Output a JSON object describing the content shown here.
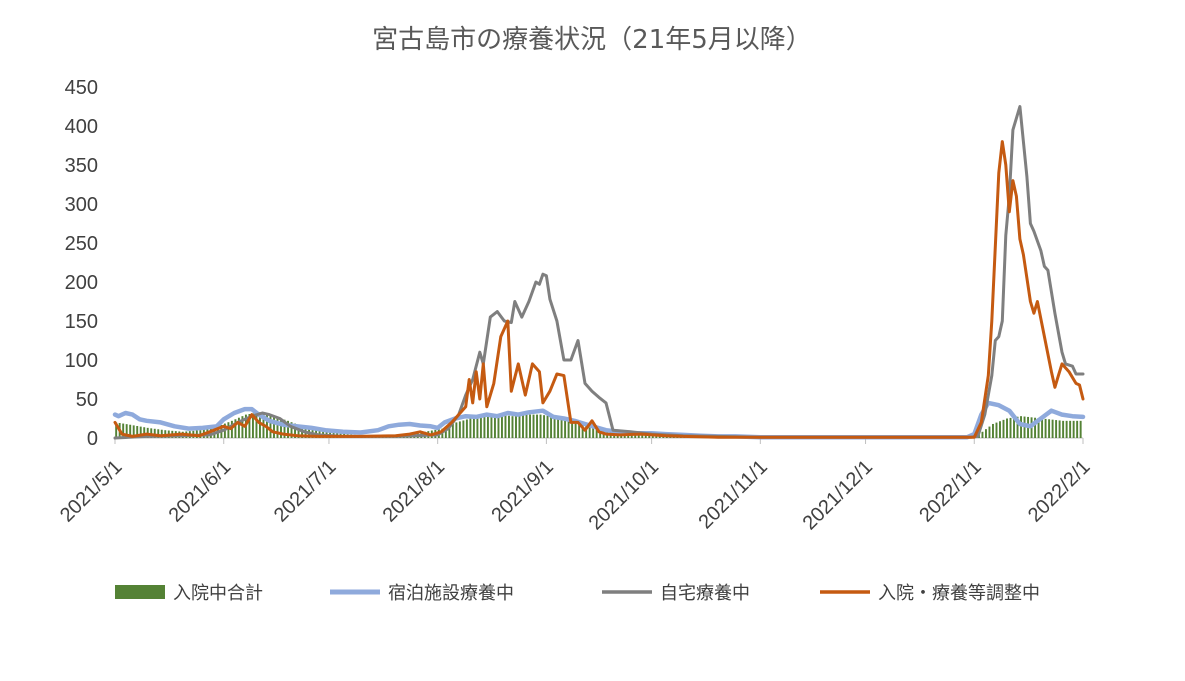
{
  "chart_data": {
    "type": "line",
    "title": "宮古島市の療養状況（21年5月以降）",
    "xlabel": "",
    "ylabel": "",
    "ylim": [
      0,
      450
    ],
    "yticks": [
      "0",
      "50",
      "100",
      "150",
      "200",
      "250",
      "300",
      "350",
      "400",
      "450"
    ],
    "xlim": [
      "2021/5/1",
      "2022/2/1"
    ],
    "xticks": [
      "2021/5/1",
      "2021/6/1",
      "2021/7/1",
      "2021/8/1",
      "2021/9/1",
      "2021/10/1",
      "2021/11/1",
      "2021/12/1",
      "2022/1/1",
      "2022/2/1"
    ],
    "grid": false,
    "legend": "bottom",
    "series": [
      {
        "name": "入院中合計",
        "type": "bar",
        "color": "#548235",
        "points": [
          [
            "2021/5/1",
            20
          ],
          [
            "2021/5/5",
            17
          ],
          [
            "2021/5/10",
            13
          ],
          [
            "2021/5/15",
            10
          ],
          [
            "2021/5/20",
            8
          ],
          [
            "2021/5/25",
            10
          ],
          [
            "2021/5/30",
            15
          ],
          [
            "2021/6/3",
            22
          ],
          [
            "2021/6/7",
            30
          ],
          [
            "2021/6/11",
            33
          ],
          [
            "2021/6/15",
            28
          ],
          [
            "2021/6/19",
            22
          ],
          [
            "2021/6/23",
            15
          ],
          [
            "2021/6/28",
            10
          ],
          [
            "2021/7/3",
            6
          ],
          [
            "2021/7/8",
            4
          ],
          [
            "2021/7/13",
            3
          ],
          [
            "2021/7/18",
            3
          ],
          [
            "2021/7/23",
            5
          ],
          [
            "2021/7/28",
            8
          ],
          [
            "2021/8/2",
            12
          ],
          [
            "2021/8/6",
            20
          ],
          [
            "2021/8/10",
            25
          ],
          [
            "2021/8/14",
            28
          ],
          [
            "2021/8/18",
            30
          ],
          [
            "2021/8/22",
            28
          ],
          [
            "2021/8/26",
            30
          ],
          [
            "2021/8/30",
            30
          ],
          [
            "2021/9/3",
            27
          ],
          [
            "2021/9/7",
            22
          ],
          [
            "2021/9/11",
            18
          ],
          [
            "2021/9/15",
            12
          ],
          [
            "2021/9/20",
            8
          ],
          [
            "2021/9/25",
            5
          ],
          [
            "2021/9/30",
            3
          ],
          [
            "2021/10/5",
            2
          ],
          [
            "2021/10/10",
            1
          ],
          [
            "2021/10/20",
            1
          ],
          [
            "2021/11/1",
            0
          ],
          [
            "2022/1/1",
            0
          ],
          [
            "2022/1/3",
            8
          ],
          [
            "2022/1/6",
            18
          ],
          [
            "2022/1/10",
            25
          ],
          [
            "2022/1/14",
            28
          ],
          [
            "2022/1/18",
            26
          ],
          [
            "2022/1/22",
            24
          ],
          [
            "2022/1/26",
            22
          ],
          [
            "2022/2/1",
            22
          ]
        ]
      },
      {
        "name": "宿泊施設療養中",
        "type": "line",
        "color": "#8FAADC",
        "points": [
          [
            "2021/5/1",
            30
          ],
          [
            "2021/5/2",
            28
          ],
          [
            "2021/5/4",
            32
          ],
          [
            "2021/5/6",
            30
          ],
          [
            "2021/5/8",
            24
          ],
          [
            "2021/5/10",
            22
          ],
          [
            "2021/5/14",
            20
          ],
          [
            "2021/5/18",
            15
          ],
          [
            "2021/5/22",
            12
          ],
          [
            "2021/5/26",
            13
          ],
          [
            "2021/5/30",
            15
          ],
          [
            "2021/6/1",
            24
          ],
          [
            "2021/6/4",
            32
          ],
          [
            "2021/6/7",
            37
          ],
          [
            "2021/6/9",
            37
          ],
          [
            "2021/6/11",
            30
          ],
          [
            "2021/6/14",
            22
          ],
          [
            "2021/6/18",
            17
          ],
          [
            "2021/6/22",
            15
          ],
          [
            "2021/6/26",
            13
          ],
          [
            "2021/6/30",
            10
          ],
          [
            "2021/7/5",
            8
          ],
          [
            "2021/7/10",
            7
          ],
          [
            "2021/7/15",
            10
          ],
          [
            "2021/7/18",
            15
          ],
          [
            "2021/7/21",
            17
          ],
          [
            "2021/7/24",
            18
          ],
          [
            "2021/7/27",
            16
          ],
          [
            "2021/7/30",
            15
          ],
          [
            "2021/8/1",
            13
          ],
          [
            "2021/8/3",
            20
          ],
          [
            "2021/8/6",
            25
          ],
          [
            "2021/8/9",
            28
          ],
          [
            "2021/8/12",
            27
          ],
          [
            "2021/8/15",
            30
          ],
          [
            "2021/8/18",
            28
          ],
          [
            "2021/8/21",
            32
          ],
          [
            "2021/8/24",
            30
          ],
          [
            "2021/8/27",
            33
          ],
          [
            "2021/8/31",
            35
          ],
          [
            "2021/9/3",
            27
          ],
          [
            "2021/9/6",
            25
          ],
          [
            "2021/9/9",
            22
          ],
          [
            "2021/9/12",
            18
          ],
          [
            "2021/9/15",
            14
          ],
          [
            "2021/9/18",
            10
          ],
          [
            "2021/9/22",
            8
          ],
          [
            "2021/9/26",
            6
          ],
          [
            "2021/10/1",
            6
          ],
          [
            "2021/10/5",
            5
          ],
          [
            "2021/10/10",
            4
          ],
          [
            "2021/10/15",
            3
          ],
          [
            "2021/10/20",
            2
          ],
          [
            "2021/10/25",
            2
          ],
          [
            "2021/11/1",
            1
          ],
          [
            "2021/12/30",
            1
          ],
          [
            "2022/1/1",
            5
          ],
          [
            "2022/1/3",
            30
          ],
          [
            "2022/1/5",
            45
          ],
          [
            "2022/1/8",
            42
          ],
          [
            "2022/1/11",
            35
          ],
          [
            "2022/1/14",
            18
          ],
          [
            "2022/1/17",
            15
          ],
          [
            "2022/1/20",
            25
          ],
          [
            "2022/1/23",
            35
          ],
          [
            "2022/1/26",
            30
          ],
          [
            "2022/1/29",
            28
          ],
          [
            "2022/2/1",
            27
          ]
        ]
      },
      {
        "name": "自宅療養中",
        "type": "line",
        "color": "#7F7F7F",
        "points": [
          [
            "2021/5/1",
            0
          ],
          [
            "2021/5/10",
            2
          ],
          [
            "2021/5/20",
            3
          ],
          [
            "2021/5/28",
            4
          ],
          [
            "2021/6/1",
            10
          ],
          [
            "2021/6/5",
            20
          ],
          [
            "2021/6/9",
            28
          ],
          [
            "2021/6/12",
            32
          ],
          [
            "2021/6/14",
            30
          ],
          [
            "2021/6/17",
            25
          ],
          [
            "2021/6/20",
            15
          ],
          [
            "2021/6/24",
            8
          ],
          [
            "2021/6/28",
            4
          ],
          [
            "2021/7/5",
            2
          ],
          [
            "2021/7/20",
            2
          ],
          [
            "2021/8/1",
            4
          ],
          [
            "2021/8/4",
            12
          ],
          [
            "2021/8/7",
            30
          ],
          [
            "2021/8/9",
            55
          ],
          [
            "2021/8/11",
            75
          ],
          [
            "2021/8/13",
            110
          ],
          [
            "2021/8/14",
            95
          ],
          [
            "2021/8/16",
            155
          ],
          [
            "2021/8/18",
            162
          ],
          [
            "2021/8/20",
            150
          ],
          [
            "2021/8/22",
            148
          ],
          [
            "2021/8/23",
            175
          ],
          [
            "2021/8/25",
            155
          ],
          [
            "2021/8/27",
            175
          ],
          [
            "2021/8/29",
            200
          ],
          [
            "2021/8/30",
            197
          ],
          [
            "2021/8/31",
            210
          ],
          [
            "2021/9/1",
            208
          ],
          [
            "2021/9/2",
            178
          ],
          [
            "2021/9/4",
            150
          ],
          [
            "2021/9/6",
            100
          ],
          [
            "2021/9/8",
            100
          ],
          [
            "2021/9/10",
            125
          ],
          [
            "2021/9/12",
            70
          ],
          [
            "2021/9/14",
            60
          ],
          [
            "2021/9/16",
            52
          ],
          [
            "2021/9/18",
            45
          ],
          [
            "2021/9/20",
            10
          ],
          [
            "2021/9/25",
            8
          ],
          [
            "2021/10/1",
            5
          ],
          [
            "2021/10/10",
            3
          ],
          [
            "2021/10/20",
            2
          ],
          [
            "2021/11/1",
            1
          ],
          [
            "2021/12/31",
            1
          ],
          [
            "2022/1/2",
            2
          ],
          [
            "2022/1/4",
            30
          ],
          [
            "2022/1/6",
            80
          ],
          [
            "2022/1/7",
            125
          ],
          [
            "2022/1/8",
            130
          ],
          [
            "2022/1/9",
            150
          ],
          [
            "2022/1/10",
            260
          ],
          [
            "2022/1/11",
            310
          ],
          [
            "2022/1/12",
            395
          ],
          [
            "2022/1/14",
            425
          ],
          [
            "2022/1/15",
            380
          ],
          [
            "2022/1/16",
            335
          ],
          [
            "2022/1/17",
            275
          ],
          [
            "2022/1/18",
            265
          ],
          [
            "2022/1/20",
            240
          ],
          [
            "2022/1/21",
            220
          ],
          [
            "2022/1/22",
            215
          ],
          [
            "2022/1/24",
            160
          ],
          [
            "2022/1/26",
            110
          ],
          [
            "2022/1/27",
            95
          ],
          [
            "2022/1/29",
            92
          ],
          [
            "2022/1/30",
            82
          ],
          [
            "2022/2/1",
            82
          ]
        ]
      },
      {
        "name": "入院・療養等調整中",
        "type": "line",
        "color": "#C55A11",
        "points": [
          [
            "2021/5/1",
            20
          ],
          [
            "2021/5/3",
            5
          ],
          [
            "2021/5/6",
            2
          ],
          [
            "2021/5/10",
            5
          ],
          [
            "2021/5/14",
            3
          ],
          [
            "2021/5/20",
            5
          ],
          [
            "2021/5/25",
            3
          ],
          [
            "2021/5/28",
            8
          ],
          [
            "2021/6/1",
            15
          ],
          [
            "2021/6/3",
            12
          ],
          [
            "2021/6/5",
            20
          ],
          [
            "2021/6/7",
            15
          ],
          [
            "2021/6/9",
            30
          ],
          [
            "2021/6/11",
            20
          ],
          [
            "2021/6/13",
            15
          ],
          [
            "2021/6/15",
            8
          ],
          [
            "2021/6/18",
            5
          ],
          [
            "2021/6/22",
            3
          ],
          [
            "2021/6/28",
            2
          ],
          [
            "2021/7/10",
            2
          ],
          [
            "2021/7/20",
            3
          ],
          [
            "2021/7/24",
            5
          ],
          [
            "2021/7/27",
            8
          ],
          [
            "2021/7/30",
            4
          ],
          [
            "2021/8/2",
            8
          ],
          [
            "2021/8/5",
            20
          ],
          [
            "2021/8/7",
            30
          ],
          [
            "2021/8/9",
            40
          ],
          [
            "2021/8/10",
            75
          ],
          [
            "2021/8/11",
            45
          ],
          [
            "2021/8/12",
            85
          ],
          [
            "2021/8/13",
            50
          ],
          [
            "2021/8/14",
            95
          ],
          [
            "2021/8/15",
            40
          ],
          [
            "2021/8/17",
            70
          ],
          [
            "2021/8/19",
            130
          ],
          [
            "2021/8/21",
            150
          ],
          [
            "2021/8/22",
            60
          ],
          [
            "2021/8/24",
            95
          ],
          [
            "2021/8/26",
            55
          ],
          [
            "2021/8/28",
            95
          ],
          [
            "2021/8/30",
            85
          ],
          [
            "2021/8/31",
            45
          ],
          [
            "2021/9/2",
            60
          ],
          [
            "2021/9/4",
            82
          ],
          [
            "2021/9/6",
            80
          ],
          [
            "2021/9/8",
            20
          ],
          [
            "2021/9/10",
            20
          ],
          [
            "2021/9/12",
            10
          ],
          [
            "2021/9/14",
            22
          ],
          [
            "2021/9/16",
            8
          ],
          [
            "2021/9/18",
            5
          ],
          [
            "2021/9/22",
            4
          ],
          [
            "2021/9/28",
            5
          ],
          [
            "2021/10/5",
            3
          ],
          [
            "2021/10/10",
            2
          ],
          [
            "2021/10/20",
            1
          ],
          [
            "2021/11/1",
            1
          ],
          [
            "2022/1/1",
            1
          ],
          [
            "2022/1/3",
            20
          ],
          [
            "2022/1/5",
            80
          ],
          [
            "2022/1/6",
            150
          ],
          [
            "2022/1/8",
            340
          ],
          [
            "2022/1/9",
            380
          ],
          [
            "2022/1/10",
            350
          ],
          [
            "2022/1/11",
            290
          ],
          [
            "2022/1/12",
            330
          ],
          [
            "2022/1/13",
            310
          ],
          [
            "2022/1/14",
            255
          ],
          [
            "2022/1/15",
            235
          ],
          [
            "2022/1/17",
            175
          ],
          [
            "2022/1/18",
            160
          ],
          [
            "2022/1/19",
            175
          ],
          [
            "2022/1/21",
            130
          ],
          [
            "2022/1/23",
            85
          ],
          [
            "2022/1/24",
            65
          ],
          [
            "2022/1/25",
            80
          ],
          [
            "2022/1/26",
            95
          ],
          [
            "2022/1/28",
            85
          ],
          [
            "2022/1/30",
            70
          ],
          [
            "2022/1/31",
            68
          ],
          [
            "2022/2/1",
            50
          ]
        ]
      }
    ]
  }
}
